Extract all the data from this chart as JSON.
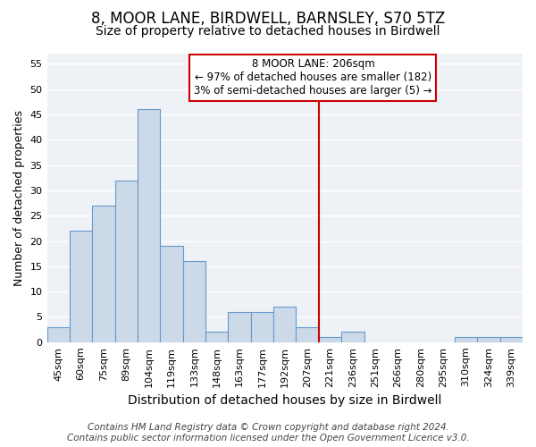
{
  "title_line1": "8, MOOR LANE, BIRDWELL, BARNSLEY, S70 5TZ",
  "title_line2": "Size of property relative to detached houses in Birdwell",
  "xlabel": "Distribution of detached houses by size in Birdwell",
  "ylabel": "Number of detached properties",
  "bar_color": "#ccd9e8",
  "bar_edge_color": "#6699cc",
  "categories": [
    "45sqm",
    "60sqm",
    "75sqm",
    "89sqm",
    "104sqm",
    "119sqm",
    "133sqm",
    "148sqm",
    "163sqm",
    "177sqm",
    "192sqm",
    "207sqm",
    "221sqm",
    "236sqm",
    "251sqm",
    "266sqm",
    "280sqm",
    "295sqm",
    "310sqm",
    "324sqm",
    "339sqm"
  ],
  "values": [
    3,
    22,
    27,
    32,
    46,
    19,
    16,
    2,
    6,
    6,
    7,
    3,
    1,
    2,
    0,
    0,
    0,
    0,
    1,
    1,
    1
  ],
  "ylim": [
    0,
    57
  ],
  "yticks": [
    0,
    5,
    10,
    15,
    20,
    25,
    30,
    35,
    40,
    45,
    50,
    55
  ],
  "vline_color": "#cc0000",
  "annotation_title": "8 MOOR LANE: 206sqm",
  "annotation_line1": "← 97% of detached houses are smaller (182)",
  "annotation_line2": "3% of semi-detached houses are larger (5) →",
  "annotation_box_edgecolor": "#cc0000",
  "annotation_box_facecolor": "#ffffff",
  "footer_line1": "Contains HM Land Registry data © Crown copyright and database right 2024.",
  "footer_line2": "Contains public sector information licensed under the Open Government Licence v3.0.",
  "background_color": "#ffffff",
  "plot_bg_color": "#eef2f7",
  "grid_color": "#ffffff",
  "title1_fontsize": 12,
  "title2_fontsize": 10,
  "xlabel_fontsize": 10,
  "ylabel_fontsize": 9,
  "tick_fontsize": 8,
  "footer_fontsize": 7.5,
  "annotation_fontsize": 8.5
}
